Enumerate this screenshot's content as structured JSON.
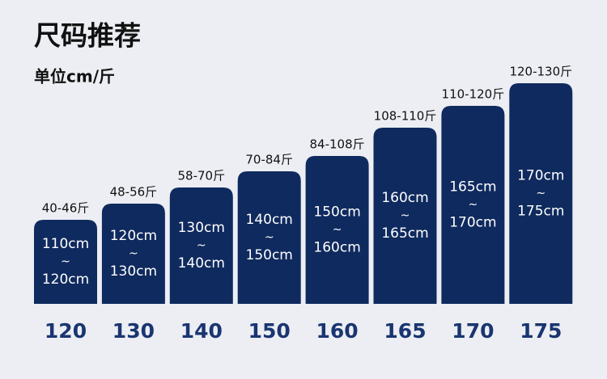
{
  "header": {
    "title": "尺码推荐",
    "unit": "单位cm/斤"
  },
  "range_sign": "~",
  "items": [
    {
      "size": "120",
      "weight": "40-46斤",
      "height_min": "110cm",
      "height_max": "120cm"
    },
    {
      "size": "130",
      "weight": "48-56斤",
      "height_min": "120cm",
      "height_max": "130cm"
    },
    {
      "size": "140",
      "weight": "58-70斤",
      "height_min": "130cm",
      "height_max": "140cm"
    },
    {
      "size": "150",
      "weight": "70-84斤",
      "height_min": "140cm",
      "height_max": "150cm"
    },
    {
      "size": "160",
      "weight": "84-108斤",
      "height_min": "150cm",
      "height_max": "160cm"
    },
    {
      "size": "165",
      "weight": "108-110斤",
      "height_min": "160cm",
      "height_max": "165cm"
    },
    {
      "size": "170",
      "weight": "110-120斤",
      "height_min": "165cm",
      "height_max": "170cm"
    },
    {
      "size": "175",
      "weight": "120-130斤",
      "height_min": "170cm",
      "height_max": "175cm"
    }
  ]
}
